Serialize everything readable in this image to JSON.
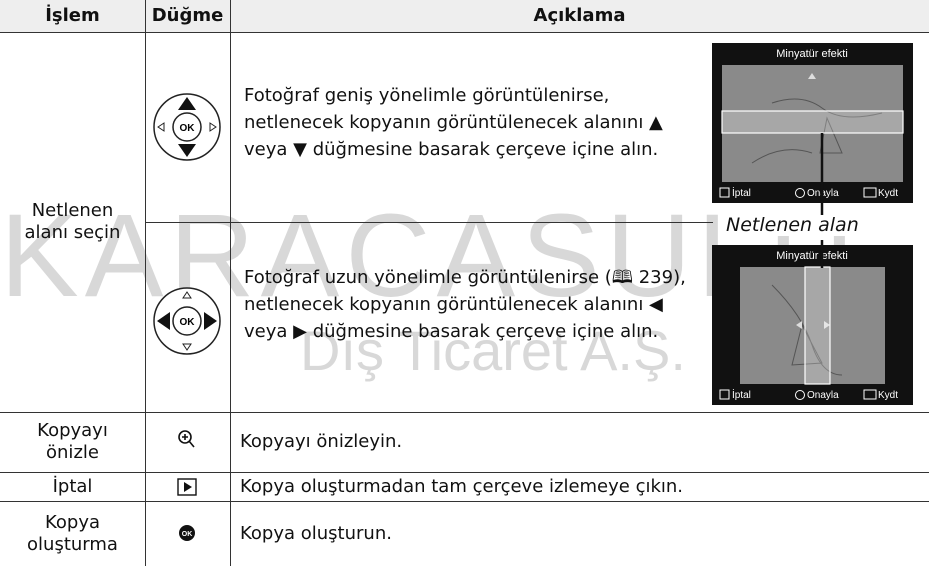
{
  "watermark": {
    "line1": "KARACASULU",
    "line2": "Dış Ticaret A.Ş."
  },
  "table": {
    "headers": [
      "İşlem",
      "Düğme",
      "Açıklama"
    ],
    "focus_row": {
      "action": "Netlenen alanı seçin",
      "descriptions": [
        "Fotoğraf geniş yönelimle görüntülenirse, netlenecek kopyanın görüntülenecek alanını ▲ veya ▼ düğmesine basarak çerçeve içine alın.",
        "Fotoğraf uzun yönelimle görüntülenirse (🕮 239), netlenecek kopyanın görüntülenecek alanını ◀ veya ▶ düğmesine basarak çerçeve içine alın."
      ],
      "callout": "Netlenen alan"
    },
    "rows": [
      [
        "Kopyayı önizle",
        "Kopyayı önizleyin."
      ],
      [
        "İptal",
        "Kopya oluşturmadan tam çerçeve izlemeye çıkın."
      ],
      [
        "Kopya oluşturma",
        "Kopya oluşturun."
      ]
    ]
  },
  "screen": {
    "title": "Minyatür efekti",
    "buttons": [
      "İptal",
      "Onayla",
      "Kydt"
    ]
  },
  "ok_label": "OK"
}
